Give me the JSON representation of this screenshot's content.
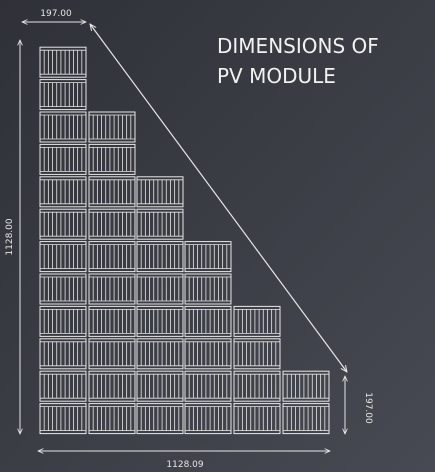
{
  "title": {
    "line1": "DIMENSIONS OF",
    "line2": "PV MODULE"
  },
  "dimensions": {
    "top_width": "197.00",
    "height": "1128.00",
    "bottom_width": "1128.09",
    "right_height": "197.00"
  }
}
